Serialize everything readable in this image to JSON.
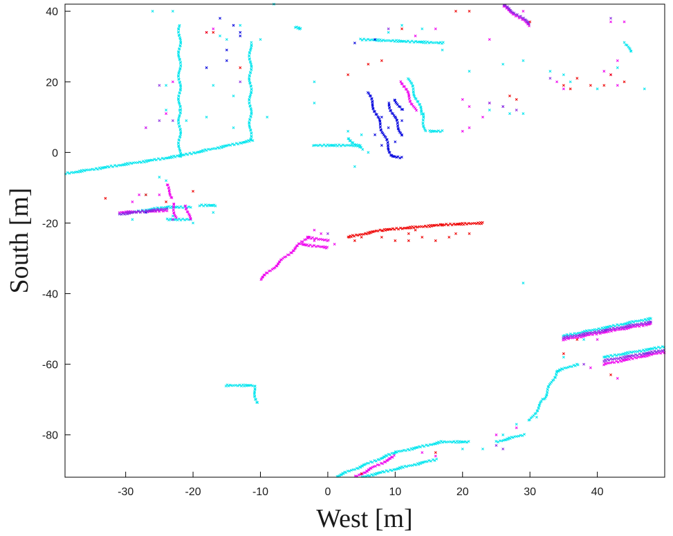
{
  "chart_data": {
    "type": "scatter",
    "title": "",
    "xlabel": "West [m]",
    "ylabel": "South [m]",
    "xlim": [
      -39,
      50
    ],
    "ylim": [
      -92,
      42
    ],
    "xticks": [
      "-30",
      "-20",
      "-10",
      "0",
      "10",
      "20",
      "30",
      "40"
    ],
    "yticks": [
      "40",
      "20",
      "0",
      "-20",
      "-40",
      "-60",
      "-80"
    ],
    "grid": false,
    "legend": "none",
    "marker": "x",
    "colors": {
      "cyan": "#00e5ee",
      "magenta": "#ee00ee",
      "blue": "#0000dd",
      "red": "#ee0000",
      "purple": "#8a2be2",
      "axis": "#000000"
    },
    "series": [
      {
        "color": "cyan",
        "segments": [
          {
            "from": [
              -39,
              -6
            ],
            "to": [
              -22,
              -1
            ]
          },
          {
            "from": [
              -22,
              -1
            ],
            "to": [
              -11,
              3.5
            ]
          },
          {
            "from": [
              -22,
              36
            ],
            "to": [
              -22,
              -1
            ]
          },
          {
            "from": [
              -11.5,
              31
            ],
            "to": [
              -11.5,
              3.5
            ]
          },
          {
            "from": [
              -31,
              -17.5
            ],
            "to": [
              -24,
              -15.5
            ]
          },
          {
            "from": [
              -24,
              -15.5
            ],
            "to": [
              -20.5,
              -15.5
            ]
          },
          {
            "from": [
              -24,
              -19
            ],
            "to": [
              -20.5,
              -19
            ]
          },
          {
            "from": [
              -19,
              -15
            ],
            "to": [
              -16.5,
              -15
            ]
          },
          {
            "from": [
              -5,
              35.5
            ],
            "to": [
              -4,
              35
            ]
          },
          {
            "from": [
              5,
              32
            ],
            "to": [
              17,
              31
            ]
          },
          {
            "from": [
              12,
              21
            ],
            "to": [
              14,
              11
            ]
          },
          {
            "from": [
              14,
              11
            ],
            "to": [
              14.5,
              6
            ]
          },
          {
            "from": [
              15,
              6
            ],
            "to": [
              17,
              6
            ]
          },
          {
            "from": [
              -2,
              2
            ],
            "to": [
              5,
              2
            ]
          },
          {
            "from": [
              3,
              4
            ],
            "to": [
              5,
              1
            ]
          },
          {
            "from": [
              44,
              31
            ],
            "to": [
              45,
              28.5
            ]
          },
          {
            "from": [
              35,
              -52
            ],
            "to": [
              48,
              -47
            ]
          },
          {
            "from": [
              41,
              -58
            ],
            "to": [
              50,
              -55
            ]
          },
          {
            "from": [
              32,
              -70
            ],
            "to": [
              34,
              -62
            ]
          },
          {
            "from": [
              34,
              -62
            ],
            "to": [
              37,
              -60
            ]
          },
          {
            "from": [
              30,
              -76
            ],
            "to": [
              32,
              -70
            ]
          },
          {
            "from": [
              1,
              -92
            ],
            "to": [
              10,
              -85
            ]
          },
          {
            "from": [
              10,
              -85
            ],
            "to": [
              17,
              -82
            ]
          },
          {
            "from": [
              17,
              -82
            ],
            "to": [
              21,
              -82
            ]
          },
          {
            "from": [
              5,
              -92
            ],
            "to": [
              16,
              -87
            ]
          },
          {
            "from": [
              25,
              -82
            ],
            "to": [
              29,
              -80
            ]
          },
          {
            "from": [
              -15,
              -66
            ],
            "to": [
              -11,
              -66
            ]
          },
          {
            "from": [
              -11,
              -66
            ],
            "to": [
              -10.5,
              -71
            ]
          }
        ],
        "points": [
          [
            -26,
            40
          ],
          [
            -23,
            40
          ],
          [
            -27,
            7
          ],
          [
            -24,
            19
          ],
          [
            -24,
            12
          ],
          [
            -17,
            19
          ],
          [
            -14,
            16
          ],
          [
            -14,
            7
          ],
          [
            -9,
            10
          ],
          [
            -2,
            20
          ],
          [
            -2,
            14
          ],
          [
            3,
            6
          ],
          [
            5,
            5
          ],
          [
            6,
            0
          ],
          [
            4,
            -4
          ],
          [
            29,
            -37
          ],
          [
            26,
            25
          ],
          [
            29,
            26
          ],
          [
            33,
            23
          ],
          [
            35,
            22
          ],
          [
            36,
            20
          ],
          [
            40,
            18
          ],
          [
            43,
            24
          ],
          [
            47,
            18
          ],
          [
            21,
            23
          ],
          [
            24,
            12
          ],
          [
            26,
            13
          ],
          [
            27,
            11
          ],
          [
            29,
            11
          ],
          [
            17,
            29
          ],
          [
            9,
            34
          ],
          [
            14,
            35
          ],
          [
            11,
            36
          ],
          [
            -8,
            42
          ],
          [
            -13,
            36
          ],
          [
            -15,
            32
          ],
          [
            -16,
            33
          ],
          [
            -10,
            32
          ],
          [
            -18,
            10
          ],
          [
            -21,
            9
          ],
          [
            -22,
            12
          ],
          [
            -27,
            -12
          ],
          [
            -29,
            -19
          ],
          [
            -25,
            -7
          ],
          [
            -24,
            -8
          ],
          [
            -23,
            -18
          ],
          [
            -17,
            -17
          ],
          [
            -20,
            -20
          ],
          [
            20,
            -84
          ],
          [
            23,
            -84
          ],
          [
            26,
            -80
          ],
          [
            28,
            -77
          ],
          [
            31,
            -75
          ],
          [
            35,
            -58
          ],
          [
            38,
            -53
          ],
          [
            44,
            -50
          ],
          [
            47,
            -57
          ]
        ]
      },
      {
        "color": "magenta",
        "segments": [
          {
            "from": [
              -10,
              -36
            ],
            "to": [
              -3,
              -24
            ]
          },
          {
            "from": [
              -3,
              -24
            ],
            "to": [
              0,
              -25
            ]
          },
          {
            "from": [
              -4,
              -26
            ],
            "to": [
              0,
              -27
            ]
          },
          {
            "from": [
              26,
              41.5
            ],
            "to": [
              30,
              36
            ]
          },
          {
            "from": [
              -24,
              -9
            ],
            "to": [
              -23,
              -13
            ]
          },
          {
            "from": [
              -23,
              -14.5
            ],
            "to": [
              -22.5,
              -18.5
            ]
          },
          {
            "from": [
              -21,
              -15
            ],
            "to": [
              -20.5,
              -19
            ]
          },
          {
            "from": [
              -31,
              -17
            ],
            "to": [
              -24,
              -16.5
            ]
          },
          {
            "from": [
              35,
              -53
            ],
            "to": [
              48,
              -48.5
            ]
          },
          {
            "from": [
              41,
              -60
            ],
            "to": [
              50,
              -56.5
            ]
          },
          {
            "from": [
              3,
              -93
            ],
            "to": [
              10,
              -86
            ]
          },
          {
            "from": [
              11,
              20
            ],
            "to": [
              13,
              12
            ]
          }
        ],
        "points": [
          [
            -18,
            34
          ],
          [
            -17,
            35
          ],
          [
            -24,
            11
          ],
          [
            -23,
            20
          ],
          [
            -27,
            7
          ],
          [
            -2,
            -25
          ],
          [
            -1,
            -23
          ],
          [
            1,
            -26
          ],
          [
            -2,
            -22
          ],
          [
            20,
            15
          ],
          [
            21,
            13
          ],
          [
            23,
            10
          ],
          [
            24,
            14
          ],
          [
            26,
            13
          ],
          [
            34,
            20
          ],
          [
            35,
            18
          ],
          [
            41,
            23
          ],
          [
            42,
            22
          ],
          [
            43,
            19
          ],
          [
            43,
            26
          ],
          [
            43,
            -64
          ],
          [
            39,
            -61
          ],
          [
            40,
            -53
          ],
          [
            14,
            -85
          ],
          [
            16,
            -86
          ],
          [
            25,
            -80
          ],
          [
            28,
            -78
          ],
          [
            -23,
            -19
          ],
          [
            -25,
            -12
          ],
          [
            -29,
            -14
          ],
          [
            -28,
            -12
          ],
          [
            20,
            6
          ],
          [
            21,
            7
          ],
          [
            13,
            33
          ],
          [
            16,
            35
          ],
          [
            24,
            32
          ],
          [
            29,
            40
          ],
          [
            42,
            37
          ],
          [
            44,
            37
          ]
        ]
      },
      {
        "color": "blue",
        "segments": [
          {
            "from": [
              6,
              17
            ],
            "to": [
              9.5,
              -1
            ]
          },
          {
            "from": [
              9.5,
              -1
            ],
            "to": [
              11,
              -1.5
            ]
          },
          {
            "from": [
              9,
              14
            ],
            "to": [
              11,
              5
            ]
          },
          {
            "from": [
              10,
              15
            ],
            "to": [
              11,
              12
            ]
          }
        ],
        "points": [
          [
            -15,
            29
          ],
          [
            -15,
            26
          ],
          [
            -13,
            34
          ],
          [
            -16,
            38
          ],
          [
            -13,
            33
          ],
          [
            7,
            5
          ],
          [
            8,
            2
          ],
          [
            9,
            7
          ],
          [
            10,
            3
          ],
          [
            11,
            5
          ],
          [
            10,
            10
          ],
          [
            11,
            9
          ],
          [
            8,
            10
          ],
          [
            -18,
            24
          ],
          [
            -14,
            36
          ],
          [
            -27,
            -17
          ],
          [
            4,
            31
          ],
          [
            7,
            32
          ]
        ]
      },
      {
        "color": "red",
        "segments": [
          {
            "from": [
              3,
              -24
            ],
            "to": [
              8,
              -22
            ]
          },
          {
            "from": [
              8,
              -22
            ],
            "to": [
              17,
              -20.5
            ]
          },
          {
            "from": [
              17,
              -20.5
            ],
            "to": [
              23,
              -20
            ]
          }
        ],
        "points": [
          [
            4,
            -25
          ],
          [
            5,
            -24
          ],
          [
            8,
            -24
          ],
          [
            10,
            -25
          ],
          [
            12,
            -25
          ],
          [
            14,
            -24
          ],
          [
            16,
            -25
          ],
          [
            18,
            -24
          ],
          [
            12,
            -23
          ],
          [
            13,
            -22
          ],
          [
            19,
            -23
          ],
          [
            21,
            -23
          ],
          [
            -18,
            34
          ],
          [
            -17,
            34
          ],
          [
            -13,
            24
          ],
          [
            3,
            22
          ],
          [
            6,
            25
          ],
          [
            8,
            26
          ],
          [
            11,
            35
          ],
          [
            19,
            40
          ],
          [
            21,
            40
          ],
          [
            30,
            37
          ],
          [
            35,
            19
          ],
          [
            36,
            18
          ],
          [
            37,
            21
          ],
          [
            39,
            19
          ],
          [
            41,
            19
          ],
          [
            42,
            22
          ],
          [
            44,
            20
          ],
          [
            35,
            -57
          ],
          [
            37,
            -53
          ],
          [
            42,
            -63
          ],
          [
            -27,
            -12
          ],
          [
            -33,
            -13
          ],
          [
            -24,
            -14
          ],
          [
            -20,
            -11
          ],
          [
            5,
            -91
          ],
          [
            16,
            -85
          ],
          [
            27,
            16
          ],
          [
            28,
            15
          ]
        ]
      },
      {
        "color": "purple",
        "segments": [
          {
            "from": [
              -31,
              -17.5
            ],
            "to": [
              -24,
              -16
            ]
          },
          {
            "from": [
              35,
              -52.5
            ],
            "to": [
              48,
              -48
            ]
          },
          {
            "from": [
              41,
              -59
            ],
            "to": [
              50,
              -56
            ]
          },
          {
            "from": [
              26,
              41.8
            ],
            "to": [
              30,
              36.5
            ]
          }
        ],
        "points": [
          [
            -25,
            19
          ],
          [
            -25,
            9
          ],
          [
            -23,
            9
          ],
          [
            0,
            -23
          ],
          [
            9,
            35
          ],
          [
            42,
            38
          ],
          [
            33,
            21
          ],
          [
            24,
            14
          ],
          [
            26,
            13
          ],
          [
            28,
            12
          ],
          [
            25,
            -83
          ],
          [
            26,
            -84
          ],
          [
            38,
            -60
          ],
          [
            -13,
            20
          ]
        ]
      }
    ]
  }
}
